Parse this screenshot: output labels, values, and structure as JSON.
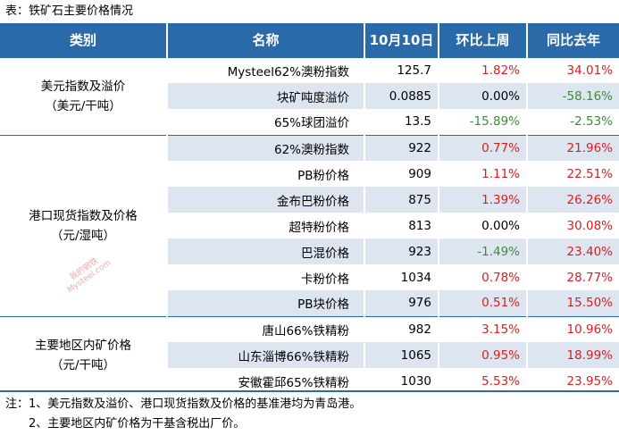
{
  "caption": "表：铁矿石主要价格情况",
  "headers": [
    "类别",
    "名称",
    "10月10日",
    "环比上周",
    "同比去年"
  ],
  "groups": [
    {
      "label_line1": "美元指数及溢价",
      "label_line2": "（美元/干吨）",
      "rows": [
        {
          "name": "Mysteel62%澳粉指数",
          "price": "125.7",
          "wow": "1.82%",
          "wow_sign": "pos",
          "yoy": "34.01%",
          "yoy_sign": "pos"
        },
        {
          "name": "块矿吨度溢价",
          "price": "0.0885",
          "wow": "0.00%",
          "wow_sign": "zero",
          "yoy": "-58.16%",
          "yoy_sign": "neg"
        },
        {
          "name": "65%球团溢价",
          "price": "13.5",
          "wow": "-15.89%",
          "wow_sign": "neg",
          "yoy": "-2.53%",
          "yoy_sign": "neg"
        }
      ]
    },
    {
      "label_line1": "港口现货指数及价格",
      "label_line2": "（元/湿吨）",
      "rows": [
        {
          "name": "62%澳粉指数",
          "price": "922",
          "wow": "0.77%",
          "wow_sign": "pos",
          "yoy": "21.96%",
          "yoy_sign": "pos"
        },
        {
          "name": "PB粉价格",
          "price": "909",
          "wow": "1.11%",
          "wow_sign": "pos",
          "yoy": "22.51%",
          "yoy_sign": "pos"
        },
        {
          "name": "金布巴粉价格",
          "price": "875",
          "wow": "1.39%",
          "wow_sign": "pos",
          "yoy": "26.26%",
          "yoy_sign": "pos"
        },
        {
          "name": "超特粉价格",
          "price": "813",
          "wow": "0.00%",
          "wow_sign": "zero",
          "yoy": "30.08%",
          "yoy_sign": "pos"
        },
        {
          "name": "巴混价格",
          "price": "923",
          "wow": "-1.49%",
          "wow_sign": "neg",
          "yoy": "23.40%",
          "yoy_sign": "pos"
        },
        {
          "name": "卡粉价格",
          "price": "1034",
          "wow": "0.78%",
          "wow_sign": "pos",
          "yoy": "28.77%",
          "yoy_sign": "pos"
        },
        {
          "name": "PB块价格",
          "price": "976",
          "wow": "0.51%",
          "wow_sign": "pos",
          "yoy": "15.50%",
          "yoy_sign": "pos"
        }
      ]
    },
    {
      "label_line1": "主要地区内矿价格",
      "label_line2": "（元/干吨）",
      "rows": [
        {
          "name": "唐山66%铁精粉",
          "price": "982",
          "wow": "3.15%",
          "wow_sign": "pos",
          "yoy": "10.96%",
          "yoy_sign": "pos"
        },
        {
          "name": "山东淄博66%铁精粉",
          "price": "1065",
          "wow": "0.95%",
          "wow_sign": "pos",
          "yoy": "18.99%",
          "yoy_sign": "pos"
        },
        {
          "name": "安徽霍邱65%铁精粉",
          "price": "1030",
          "wow": "5.53%",
          "wow_sign": "pos",
          "yoy": "23.95%",
          "yoy_sign": "pos"
        }
      ]
    }
  ],
  "notes": [
    "注：1、美元指数及溢价、港口现货指数及价格的基准港均为青岛港。",
    "2、主要地区内矿价格为干基含税出厂价。"
  ],
  "watermark": {
    "line1": "我的钢铁",
    "line2": "Mysteel.com"
  },
  "colors": {
    "header_bg": "#2a6aa8",
    "stripe": "#dde5f0",
    "positive": "#d81e1e",
    "negative": "#3d8b3a"
  }
}
